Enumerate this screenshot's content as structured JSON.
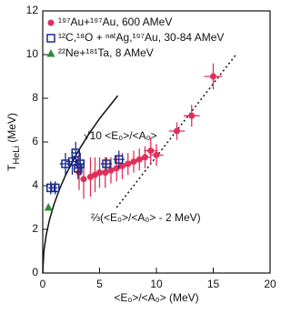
{
  "chart_data": {
    "type": "scatter",
    "x_label": "<E₀>/<A₀> (MeV)",
    "y_label": {
      "main": "T",
      "sub": "HeLi",
      "rest": " (MeV)"
    },
    "xlim": [
      0,
      20
    ],
    "ylim": [
      0,
      12
    ],
    "xticks": [
      0,
      5,
      10,
      15,
      20
    ],
    "yticks": [
      0,
      2,
      4,
      6,
      8,
      10,
      12
    ],
    "legend": "upper left",
    "series": [
      {
        "name": "¹⁹⁷Au+¹⁹⁷Au, 600 AMeV",
        "color": "#e0305a",
        "marker": "circle",
        "x": [
          3.2,
          3.6,
          4.2,
          4.6,
          5.0,
          5.5,
          6.0,
          6.5,
          7.0,
          7.5,
          8.0,
          8.5,
          9.0,
          9.5,
          10.0,
          11.8,
          13.1,
          15.0
        ],
        "values": [
          4.6,
          4.3,
          4.4,
          4.5,
          4.6,
          4.6,
          4.7,
          4.8,
          4.9,
          5.0,
          5.1,
          5.2,
          5.3,
          5.6,
          5.4,
          6.5,
          7.2,
          9.0
        ],
        "xerr": [
          0.3,
          0.3,
          0.3,
          0.3,
          0.4,
          0.4,
          0.4,
          0.4,
          0.5,
          0.5,
          0.5,
          0.5,
          0.5,
          0.6,
          0.6,
          0.7,
          0.7,
          0.8
        ],
        "yerr": [
          0.8,
          0.9,
          0.9,
          0.8,
          0.7,
          0.7,
          0.6,
          0.6,
          0.6,
          0.5,
          0.5,
          0.5,
          0.5,
          0.6,
          0.5,
          0.4,
          0.5,
          0.6
        ]
      },
      {
        "name": "¹²C,¹⁸O + ⁿᵃᵗAg,¹⁹⁷Au, 30-84 AMeV",
        "color": "#1a2a8a",
        "marker": "square",
        "x": [
          0.7,
          1.1,
          2.0,
          2.6,
          2.9,
          3.1,
          3.3,
          5.6,
          6.7
        ],
        "values": [
          3.9,
          3.9,
          5.0,
          5.1,
          5.5,
          4.8,
          5.0,
          5.0,
          5.2
        ],
        "xerr": [
          0.2,
          0.2,
          0.5,
          0.5,
          0.4,
          0.4,
          0.4,
          0.5,
          0.5
        ],
        "yerr": [
          0.3,
          0.3,
          0.5,
          0.6,
          0.5,
          0.5,
          0.5,
          0.3,
          0.4
        ]
      },
      {
        "name": "²²Ne+¹⁸¹Ta, 8 AMeV",
        "color": "#2e8b3e",
        "marker": "triangle",
        "x": [
          0.5
        ],
        "values": [
          3.0
        ],
        "xerr": [
          0
        ],
        "yerr": [
          0
        ]
      }
    ],
    "curves": [
      {
        "label": "√10 <E₀>/<A₀>",
        "style": "solid",
        "x": [
          0,
          0.1,
          0.3,
          0.6,
          1,
          1.5,
          2,
          3,
          4,
          5,
          6.6
        ],
        "values": [
          0,
          1,
          1.73,
          2.45,
          3.16,
          3.87,
          4.47,
          5.48,
          6.32,
          7.07,
          8.12
        ]
      },
      {
        "label": "⅔(<E₀>/<A₀> - 2 MeV)",
        "style": "dotted",
        "x": [
          6.5,
          17
        ],
        "values": [
          3,
          10
        ]
      }
    ]
  }
}
